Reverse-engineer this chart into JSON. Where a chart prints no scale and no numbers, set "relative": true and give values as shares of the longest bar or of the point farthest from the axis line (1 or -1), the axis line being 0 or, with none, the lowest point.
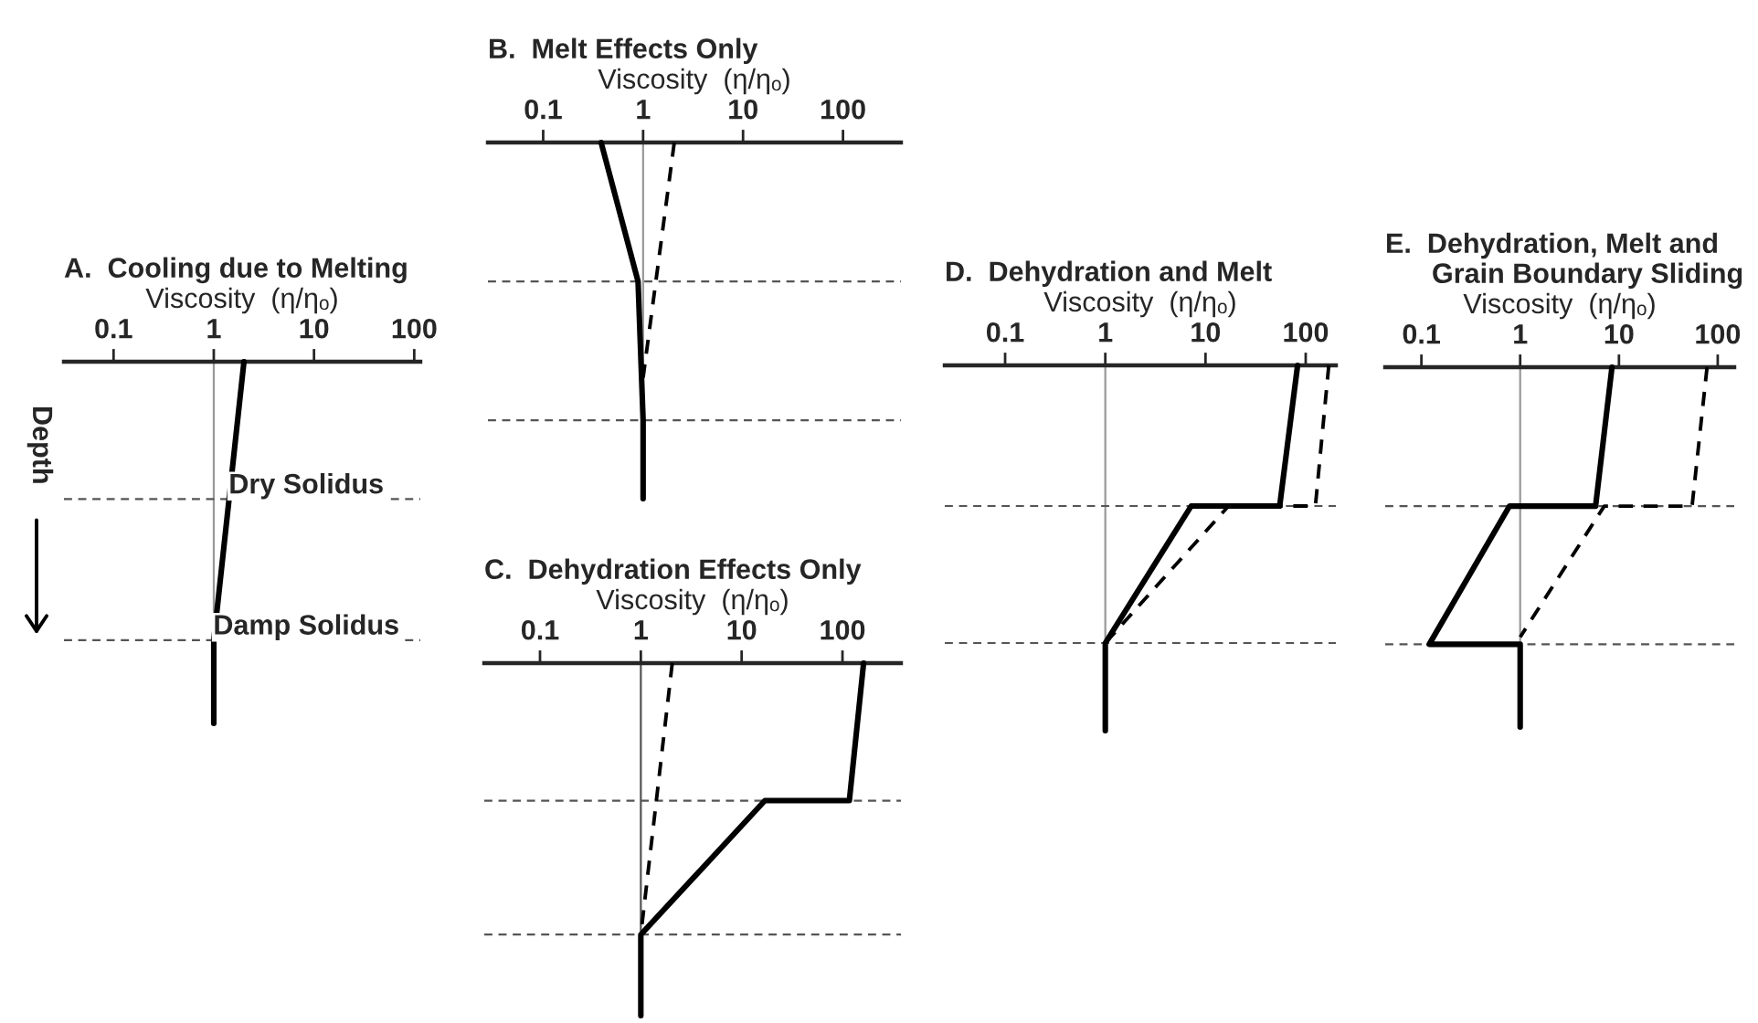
{
  "chart_data": [
    {
      "type": "line",
      "title": "A.  Cooling due to Melting",
      "xlabel": "Viscosity  (η/ηₒ)",
      "ylabel": "Depth",
      "log": "x",
      "relative": true,
      "xlim": [
        0.032,
        115
      ],
      "xticks": [
        0.1,
        1,
        10,
        100
      ],
      "series": [
        {
          "color": "#000000",
          "line_style": "solid",
          "x": [
            2.0,
            1,
            1
          ],
          "values": [
            0,
            -0.77,
            -1
          ]
        }
      ],
      "ref_lines": [
        {
          "axis": "x",
          "value": 1,
          "color": "#999999",
          "line_style": "solid"
        },
        {
          "axis": "y",
          "value": -0.38,
          "label": "Dry Solidus",
          "color": "#555555",
          "line_style": "dashed"
        },
        {
          "axis": "y",
          "value": -0.77,
          "label": "Damp Solidus",
          "color": "#555555",
          "line_style": "dashed"
        }
      ]
    },
    {
      "type": "line",
      "title": "B.  Melt Effects Only",
      "xlabel": "Viscosity  (η/ηₒ)",
      "log": "x",
      "relative": true,
      "xlim": [
        0.028,
        380
      ],
      "xticks": [
        0.1,
        1,
        10,
        100
      ],
      "series": [
        {
          "color": "#000000",
          "line_style": "solid",
          "x": [
            0.38,
            0.89,
            1,
            1
          ],
          "values": [
            0,
            -0.39,
            -0.78,
            -1
          ]
        },
        {
          "color": "#000000",
          "line_style": "dashed",
          "x": [
            2.05,
            1
          ],
          "values": [
            0,
            -0.66
          ]
        }
      ],
      "ref_lines": [
        {
          "axis": "x",
          "value": 1,
          "color": "#999999",
          "line_style": "solid"
        },
        {
          "axis": "y",
          "value": -0.39,
          "color": "#555555",
          "line_style": "dashed"
        },
        {
          "axis": "y",
          "value": -0.78,
          "color": "#555555",
          "line_style": "dashed"
        }
      ]
    },
    {
      "type": "line",
      "title": "C.  Dehydration Effects Only",
      "xlabel": "Viscosity  (η/ηₒ)",
      "log": "x",
      "relative": true,
      "xlim": [
        0.028,
        380
      ],
      "xticks": [
        0.1,
        1,
        10,
        100
      ],
      "series": [
        {
          "color": "#000000",
          "line_style": "solid",
          "x": [
            162,
            117,
            17,
            1,
            1
          ],
          "values": [
            0,
            -0.39,
            -0.39,
            -0.77,
            -1
          ]
        },
        {
          "color": "#000000",
          "line_style": "dashed",
          "x": [
            2.05,
            1
          ],
          "values": [
            0,
            -0.77
          ]
        }
      ],
      "ref_lines": [
        {
          "axis": "x",
          "value": 1,
          "color": "#555555",
          "line_style": "solid"
        },
        {
          "axis": "y",
          "value": -0.39,
          "color": "#555555",
          "line_style": "dashed"
        },
        {
          "axis": "y",
          "value": -0.77,
          "color": "#555555",
          "line_style": "dashed"
        }
      ]
    },
    {
      "type": "line",
      "title": "D.  Dehydration and Melt",
      "xlabel": "Viscosity  (η/ηₒ)",
      "log": "x",
      "relative": true,
      "xlim": [
        0.025,
        200
      ],
      "xticks": [
        0.1,
        1,
        10,
        100
      ],
      "series": [
        {
          "color": "#000000",
          "line_style": "solid",
          "x": [
            83,
            55,
            7.2,
            1,
            1
          ],
          "values": [
            0,
            -0.385,
            -0.385,
            -0.76,
            -1
          ]
        },
        {
          "color": "#000000",
          "line_style": "dashed",
          "x": [
            170,
            125,
            17,
            1
          ],
          "values": [
            0,
            -0.385,
            -0.385,
            -0.76
          ]
        }
      ],
      "ref_lines": [
        {
          "axis": "x",
          "value": 1,
          "color": "#999999",
          "line_style": "solid"
        },
        {
          "axis": "y",
          "value": -0.385,
          "color": "#555555",
          "line_style": "dashed"
        },
        {
          "axis": "y",
          "value": -0.76,
          "color": "#555555",
          "line_style": "dashed"
        }
      ]
    },
    {
      "type": "line",
      "title": "E.  Dehydration, Melt and\n      Grain Boundary Sliding",
      "xlabel": "Viscosity  (η/ηₒ)",
      "log": "x",
      "relative": true,
      "xlim": [
        0.043,
        147
      ],
      "xticks": [
        0.1,
        1,
        10,
        100
      ],
      "series": [
        {
          "color": "#000000",
          "line_style": "solid",
          "x": [
            8.5,
            5.8,
            0.78,
            0.12,
            1,
            1
          ],
          "values": [
            0,
            -0.386,
            -0.386,
            -0.77,
            -0.77,
            -1
          ]
        },
        {
          "color": "#000000",
          "line_style": "dashed",
          "x": [
            78,
            55,
            7.1,
            1
          ],
          "values": [
            0,
            -0.386,
            -0.386,
            -0.75
          ]
        }
      ],
      "ref_lines": [
        {
          "axis": "x",
          "value": 1,
          "color": "#999999",
          "line_style": "solid"
        },
        {
          "axis": "y",
          "value": -0.386,
          "color": "#555555",
          "line_style": "dashed"
        },
        {
          "axis": "y",
          "value": -0.77,
          "color": "#555555",
          "line_style": "dashed"
        }
      ]
    }
  ]
}
